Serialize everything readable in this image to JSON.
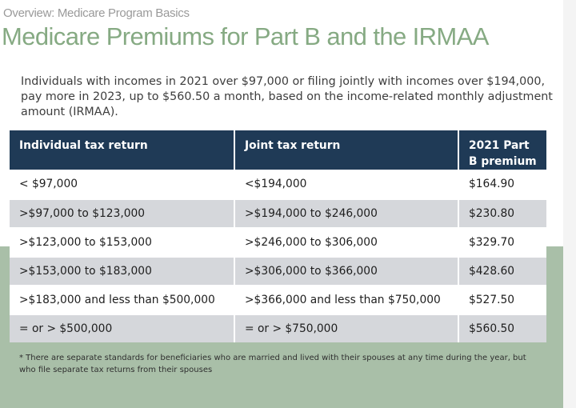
{
  "kicker": "Overview: Medicare Program Basics",
  "title": "Medicare Premiums for Part B and the IRMAA",
  "intro": "Individuals with incomes in 2021 over $97,000 or filing jointly with incomes over $194,000, pay more in 2023, up to $560.50 a month, based on the income-related monthly adjustment amount (IRMAA).",
  "table": {
    "headers": [
      "Individual tax return",
      "Joint tax return",
      "2021 Part B premium"
    ],
    "rows": [
      [
        "< $97,000",
        "<$194,000",
        "$164.90"
      ],
      [
        ">$97,000 to $123,000",
        ">$194,000 to $246,000",
        "$230.80"
      ],
      [
        ">$123,000 to $153,000",
        ">$246,000 to $306,000",
        "$329.70"
      ],
      [
        ">$153,000 to $183,000",
        ">$306,000 to $366,000",
        "$428.60"
      ],
      [
        ">$183,000 and less than $500,000",
        ">$366,000 and less than $750,000",
        "$527.50"
      ],
      [
        "= or > $500,000",
        "= or > $750,000",
        "$560.50"
      ]
    ]
  },
  "footnote": "* There are separate standards for beneficiaries who are married and lived with their spouses at any time during the year, but who file separate tax returns from their spouses",
  "colors": {
    "header_bg": "#1f3a56",
    "title": "#86aa83",
    "band": "#a9bfa8",
    "row_alt": "#d5d7db"
  }
}
